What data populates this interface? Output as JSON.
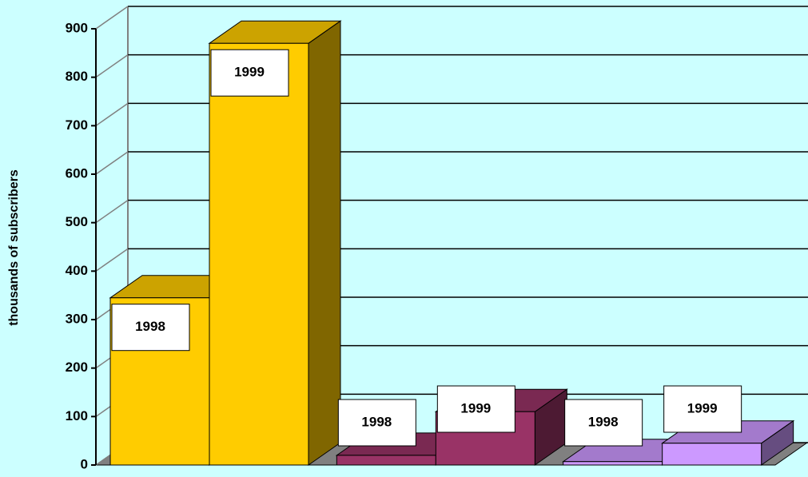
{
  "chart_data": {
    "type": "bar3d",
    "y_label": "thousands of subscribers",
    "categories": [
      null,
      null,
      null
    ],
    "colors": [
      "#ffcc00",
      "#993366",
      "#cc99ff"
    ],
    "series": [
      {
        "name": "1998",
        "values": [
          345,
          20,
          7
        ]
      },
      {
        "name": "1999",
        "values": [
          870,
          110,
          45
        ]
      }
    ],
    "ylim": [
      0,
      900
    ],
    "yticks": [
      0,
      100,
      200,
      300,
      400,
      500,
      600,
      700,
      800,
      900
    ],
    "grid": true
  }
}
